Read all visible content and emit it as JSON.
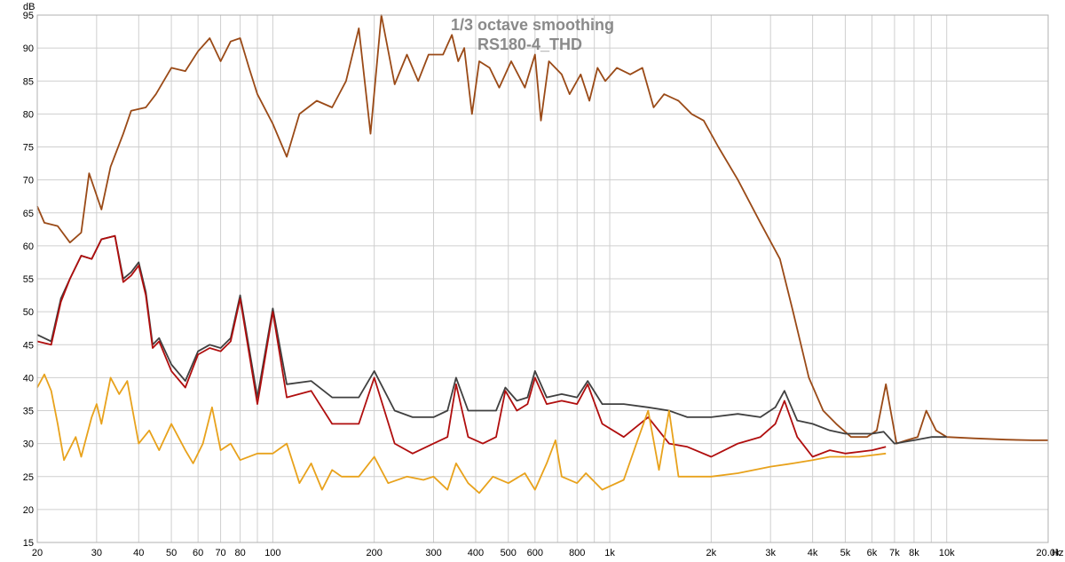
{
  "chart_data": {
    "type": "line",
    "title": "1/3 octave smoothing",
    "subtitle": "RS180-4_THD",
    "ylabel": "dB",
    "x_unit": "Hz",
    "x_scale": "log",
    "xlim": [
      20,
      20000
    ],
    "ylim": [
      15,
      95
    ],
    "grid": true,
    "x_ticks": [
      {
        "v": 20,
        "label": "20"
      },
      {
        "v": 30,
        "label": "30"
      },
      {
        "v": 40,
        "label": "40"
      },
      {
        "v": 50,
        "label": "50"
      },
      {
        "v": 60,
        "label": "60"
      },
      {
        "v": 70,
        "label": "70"
      },
      {
        "v": 80,
        "label": "80"
      },
      {
        "v": 100,
        "label": "100"
      },
      {
        "v": 200,
        "label": "200"
      },
      {
        "v": 300,
        "label": "300"
      },
      {
        "v": 400,
        "label": "400"
      },
      {
        "v": 500,
        "label": "500"
      },
      {
        "v": 600,
        "label": "600"
      },
      {
        "v": 800,
        "label": "800"
      },
      {
        "v": 1000,
        "label": "1k"
      },
      {
        "v": 2000,
        "label": "2k"
      },
      {
        "v": 3000,
        "label": "3k"
      },
      {
        "v": 4000,
        "label": "4k"
      },
      {
        "v": 5000,
        "label": "5k"
      },
      {
        "v": 6000,
        "label": "6k"
      },
      {
        "v": 7000,
        "label": "7k"
      },
      {
        "v": 8000,
        "label": "8k"
      },
      {
        "v": 10000,
        "label": "10k"
      },
      {
        "v": 20000,
        "label": "20.0k"
      }
    ],
    "y_ticks": [
      15,
      20,
      25,
      30,
      35,
      40,
      45,
      50,
      55,
      60,
      65,
      70,
      75,
      80,
      85,
      90,
      95
    ],
    "series": [
      {
        "color": "#9a4a17",
        "points": [
          [
            20,
            66
          ],
          [
            21,
            63.5
          ],
          [
            23,
            63
          ],
          [
            25,
            60.5
          ],
          [
            27,
            62
          ],
          [
            28.5,
            71
          ],
          [
            31,
            65.5
          ],
          [
            33,
            72
          ],
          [
            36,
            77
          ],
          [
            38,
            80.5
          ],
          [
            42,
            81
          ],
          [
            45,
            83
          ],
          [
            50,
            87
          ],
          [
            55,
            86.5
          ],
          [
            60,
            89.5
          ],
          [
            65,
            91.5
          ],
          [
            70,
            88
          ],
          [
            75,
            91
          ],
          [
            80,
            91.5
          ],
          [
            85,
            87
          ],
          [
            90,
            83
          ],
          [
            100,
            78.5
          ],
          [
            110,
            73.5
          ],
          [
            120,
            80
          ],
          [
            135,
            82
          ],
          [
            150,
            81
          ],
          [
            165,
            85
          ],
          [
            180,
            93
          ],
          [
            195,
            77
          ],
          [
            210,
            95
          ],
          [
            230,
            84.5
          ],
          [
            250,
            89
          ],
          [
            270,
            85
          ],
          [
            290,
            89
          ],
          [
            320,
            89
          ],
          [
            340,
            92
          ],
          [
            355,
            88
          ],
          [
            370,
            90
          ],
          [
            390,
            80
          ],
          [
            410,
            88
          ],
          [
            440,
            87
          ],
          [
            470,
            84
          ],
          [
            510,
            88
          ],
          [
            560,
            84
          ],
          [
            600,
            89
          ],
          [
            625,
            79
          ],
          [
            660,
            88
          ],
          [
            720,
            86
          ],
          [
            760,
            83
          ],
          [
            820,
            86
          ],
          [
            870,
            82
          ],
          [
            920,
            87
          ],
          [
            970,
            85
          ],
          [
            1050,
            87
          ],
          [
            1150,
            86
          ],
          [
            1250,
            87
          ],
          [
            1350,
            81
          ],
          [
            1450,
            83
          ],
          [
            1600,
            82
          ],
          [
            1750,
            80
          ],
          [
            1900,
            79
          ],
          [
            2100,
            75
          ],
          [
            2400,
            70
          ],
          [
            2800,
            63.5
          ],
          [
            3200,
            58
          ],
          [
            3500,
            50
          ],
          [
            3900,
            40
          ],
          [
            4300,
            35
          ],
          [
            4700,
            33
          ],
          [
            5200,
            31
          ],
          [
            5800,
            31
          ],
          [
            6200,
            32
          ],
          [
            6600,
            39
          ],
          [
            7100,
            30
          ],
          [
            7600,
            30.5
          ],
          [
            8200,
            31
          ],
          [
            8700,
            35
          ],
          [
            9300,
            32
          ],
          [
            10000,
            31
          ],
          [
            12000,
            30.8
          ],
          [
            15000,
            30.6
          ],
          [
            18000,
            30.5
          ],
          [
            20000,
            30.5
          ]
        ]
      },
      {
        "color": "#404040",
        "points": [
          [
            20,
            46.5
          ],
          [
            22,
            45.5
          ],
          [
            23.5,
            52
          ],
          [
            25,
            55
          ],
          [
            27,
            58.5
          ],
          [
            29,
            58
          ],
          [
            31,
            61
          ],
          [
            34,
            61.5
          ],
          [
            36,
            55
          ],
          [
            38,
            56
          ],
          [
            40,
            57.5
          ],
          [
            42,
            53
          ],
          [
            44,
            45
          ],
          [
            46,
            46
          ],
          [
            50,
            42
          ],
          [
            55,
            39.5
          ],
          [
            60,
            44
          ],
          [
            65,
            45
          ],
          [
            70,
            44.5
          ],
          [
            75,
            46
          ],
          [
            80,
            52.5
          ],
          [
            90,
            37
          ],
          [
            100,
            50.5
          ],
          [
            110,
            39
          ],
          [
            130,
            39.5
          ],
          [
            150,
            37
          ],
          [
            180,
            37
          ],
          [
            200,
            41
          ],
          [
            230,
            35
          ],
          [
            260,
            34
          ],
          [
            300,
            34
          ],
          [
            330,
            35
          ],
          [
            350,
            40
          ],
          [
            380,
            35
          ],
          [
            420,
            35
          ],
          [
            460,
            35
          ],
          [
            490,
            38.5
          ],
          [
            530,
            36.5
          ],
          [
            570,
            37
          ],
          [
            600,
            41
          ],
          [
            650,
            37
          ],
          [
            720,
            37.5
          ],
          [
            800,
            37
          ],
          [
            860,
            39.5
          ],
          [
            950,
            36
          ],
          [
            1100,
            36
          ],
          [
            1300,
            35.5
          ],
          [
            1500,
            35
          ],
          [
            1700,
            34
          ],
          [
            2000,
            34
          ],
          [
            2400,
            34.5
          ],
          [
            2800,
            34
          ],
          [
            3100,
            35.5
          ],
          [
            3300,
            38
          ],
          [
            3600,
            33.5
          ],
          [
            4000,
            33
          ],
          [
            4500,
            32
          ],
          [
            5000,
            31.5
          ],
          [
            6000,
            31.5
          ],
          [
            6500,
            31.8
          ],
          [
            7000,
            30
          ],
          [
            8000,
            30.5
          ],
          [
            9000,
            31
          ],
          [
            10000,
            31
          ]
        ]
      },
      {
        "color": "#b00e0e",
        "points": [
          [
            20,
            45.5
          ],
          [
            22,
            45
          ],
          [
            23.5,
            51.5
          ],
          [
            25,
            55
          ],
          [
            27,
            58.5
          ],
          [
            29,
            58
          ],
          [
            31,
            61
          ],
          [
            34,
            61.5
          ],
          [
            36,
            54.5
          ],
          [
            38,
            55.5
          ],
          [
            40,
            57
          ],
          [
            42,
            52.5
          ],
          [
            44,
            44.5
          ],
          [
            46,
            45.5
          ],
          [
            50,
            41
          ],
          [
            55,
            38.5
          ],
          [
            60,
            43.5
          ],
          [
            65,
            44.5
          ],
          [
            70,
            44
          ],
          [
            75,
            45.5
          ],
          [
            80,
            52
          ],
          [
            90,
            36
          ],
          [
            100,
            50
          ],
          [
            110,
            37
          ],
          [
            130,
            38
          ],
          [
            150,
            33
          ],
          [
            180,
            33
          ],
          [
            200,
            40
          ],
          [
            230,
            30
          ],
          [
            260,
            28.5
          ],
          [
            300,
            30
          ],
          [
            330,
            31
          ],
          [
            350,
            39
          ],
          [
            380,
            31
          ],
          [
            420,
            30
          ],
          [
            460,
            31
          ],
          [
            490,
            38
          ],
          [
            530,
            35
          ],
          [
            570,
            36
          ],
          [
            600,
            40
          ],
          [
            650,
            36
          ],
          [
            720,
            36.5
          ],
          [
            800,
            36
          ],
          [
            860,
            39
          ],
          [
            950,
            33
          ],
          [
            1100,
            31
          ],
          [
            1300,
            34
          ],
          [
            1500,
            30
          ],
          [
            1700,
            29.5
          ],
          [
            2000,
            28
          ],
          [
            2400,
            30
          ],
          [
            2800,
            31
          ],
          [
            3100,
            33
          ],
          [
            3300,
            36.5
          ],
          [
            3600,
            31
          ],
          [
            4000,
            28
          ],
          [
            4500,
            29
          ],
          [
            5000,
            28.5
          ],
          [
            6000,
            29
          ],
          [
            6600,
            29.5
          ]
        ]
      },
      {
        "color": "#e8a21c",
        "points": [
          [
            20,
            38.5
          ],
          [
            21,
            40.5
          ],
          [
            22,
            38
          ],
          [
            23,
            33
          ],
          [
            24,
            27.5
          ],
          [
            26,
            31
          ],
          [
            27,
            28
          ],
          [
            29,
            34
          ],
          [
            30,
            36
          ],
          [
            31,
            33
          ],
          [
            33,
            40
          ],
          [
            35,
            37.5
          ],
          [
            37,
            39.5
          ],
          [
            40,
            30
          ],
          [
            43,
            32
          ],
          [
            46,
            29
          ],
          [
            50,
            33
          ],
          [
            55,
            29
          ],
          [
            58,
            27
          ],
          [
            62,
            30
          ],
          [
            66,
            35.5
          ],
          [
            70,
            29
          ],
          [
            75,
            30
          ],
          [
            80,
            27.5
          ],
          [
            90,
            28.5
          ],
          [
            100,
            28.5
          ],
          [
            110,
            30
          ],
          [
            120,
            24
          ],
          [
            130,
            27
          ],
          [
            140,
            23
          ],
          [
            150,
            26
          ],
          [
            160,
            25
          ],
          [
            180,
            25
          ],
          [
            200,
            28
          ],
          [
            220,
            24
          ],
          [
            250,
            25
          ],
          [
            280,
            24.5
          ],
          [
            300,
            25
          ],
          [
            330,
            23
          ],
          [
            350,
            27
          ],
          [
            380,
            24
          ],
          [
            410,
            22.5
          ],
          [
            450,
            25
          ],
          [
            500,
            24
          ],
          [
            560,
            25.5
          ],
          [
            600,
            23
          ],
          [
            650,
            27
          ],
          [
            690,
            30.5
          ],
          [
            720,
            25
          ],
          [
            800,
            24
          ],
          [
            850,
            25.5
          ],
          [
            950,
            23
          ],
          [
            1100,
            24.5
          ],
          [
            1200,
            30
          ],
          [
            1300,
            35
          ],
          [
            1400,
            26
          ],
          [
            1500,
            35
          ],
          [
            1600,
            25
          ],
          [
            1800,
            25
          ],
          [
            2000,
            25
          ],
          [
            2400,
            25.5
          ],
          [
            3000,
            26.5
          ],
          [
            3500,
            27
          ],
          [
            4000,
            27.5
          ],
          [
            4500,
            28
          ],
          [
            5500,
            28
          ],
          [
            6600,
            28.5
          ]
        ]
      }
    ]
  }
}
